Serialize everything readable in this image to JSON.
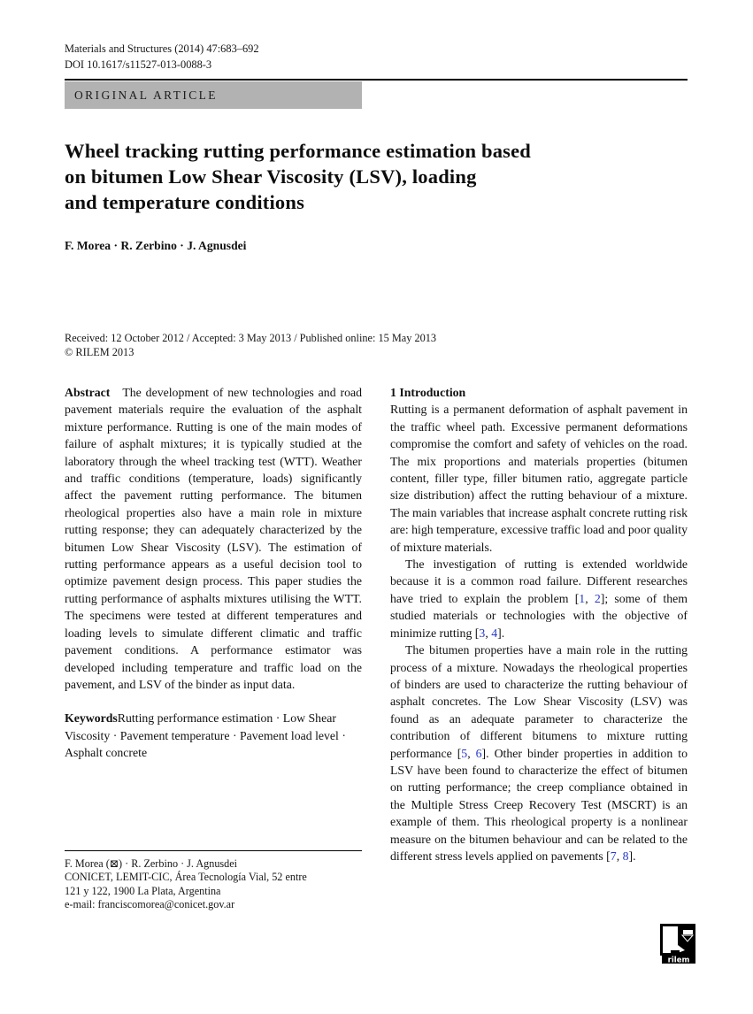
{
  "header": {
    "journal_line": "Materials and Structures (2014) 47:683–692",
    "doi_line": "DOI 10.1617/s11527-013-0088-3",
    "article_type": "ORIGINAL ARTICLE"
  },
  "title": {
    "lines": [
      "Wheel tracking rutting performance estimation based",
      "on bitumen Low Shear Viscosity (LSV), loading",
      "and temperature conditions"
    ]
  },
  "authors": "F. Morea · R. Zerbino · J. Agnusdei",
  "dates": {
    "received_line": "Received: 12 October 2012 / Accepted: 3 May 2013 / Published online: 15 May 2013",
    "copyright_line": "© RILEM 2013"
  },
  "abstract": {
    "label": "Abstract",
    "text": "The development of new technologies and road pavement materials require the evaluation of the asphalt mixture performance. Rutting is one of the main modes of failure of asphalt mixtures; it is typically studied at the laboratory through the wheel tracking test (WTT). Weather and traffic conditions (temperature, loads) significantly affect the pavement rutting performance. The bitumen rheological properties also have a main role in mixture rutting response; they can adequately characterized by the bitumen Low Shear Viscosity (LSV). The estimation of rutting performance appears as a useful decision tool to optimize pavement design process. This paper studies the rutting performance of asphalts mixtures utilising the WTT. The specimens were tested at different temperatures and loading levels to simulate different climatic and traffic pavement conditions. A performance estimator was developed including temperature and traffic load on the pavement, and LSV of the binder as input data."
  },
  "keywords": {
    "label": "Keywords",
    "text": "Rutting performance estimation · Low Shear Viscosity · Pavement temperature · Pavement load level · Asphalt concrete"
  },
  "introduction": {
    "heading": "1 Introduction",
    "paragraphs": [
      {
        "segments": [
          {
            "t": "Rutting is a permanent deformation of asphalt pavement in the traffic wheel path. Excessive permanent deformations compromise the comfort and safety of vehicles on the road. The mix proportions and materials properties (bitumen content, filler type, filler bitumen ratio, aggregate particle size distribution) affect the rutting behaviour of a mixture. The main variables that increase asphalt concrete rutting risk are: high temperature, excessive traffic load and poor quality of mixture materials."
          }
        ]
      },
      {
        "segments": [
          {
            "t": "The investigation of rutting is extended worldwide because it is a common road failure. Different researches have tried to explain the problem ["
          },
          {
            "l": "1"
          },
          {
            "t": ", "
          },
          {
            "l": "2"
          },
          {
            "t": "]; some of them studied materials or technologies with the objective of minimize rutting ["
          },
          {
            "l": "3"
          },
          {
            "t": ", "
          },
          {
            "l": "4"
          },
          {
            "t": "]."
          }
        ]
      },
      {
        "segments": [
          {
            "t": "The bitumen properties have a main role in the rutting process of a mixture. Nowadays the rheological properties of binders are used to characterize the rutting behaviour of asphalt concretes. The Low Shear Viscosity (LSV) was found as an adequate parameter to characterize the contribution of different bitumens to mixture rutting performance ["
          },
          {
            "l": "5"
          },
          {
            "t": ", "
          },
          {
            "l": "6"
          },
          {
            "t": "]. Other binder properties in addition to LSV have been found to characterize the effect of bitumen on rutting performance; the creep compliance obtained in the Multiple Stress Creep Recovery Test (MSCRT) is an example of them. This rheological property is a nonlinear measure on the bitumen behaviour and can be related to the different stress levels applied on pavements ["
          },
          {
            "l": "7"
          },
          {
            "t": ", "
          },
          {
            "l": "8"
          },
          {
            "t": "]."
          }
        ]
      }
    ]
  },
  "footnote": {
    "authors_line": "F. Morea (⊠) · R. Zerbino · J. Agnusdei",
    "affiliation_line1": "CONICET, LEMIT-CIC, Área Tecnología Vial, 52 entre",
    "affiliation_line2": "121 y 122, 1900 La Plata, Argentina",
    "email_line": "e-mail: franciscomorea@conicet.gov.ar"
  },
  "logo": {
    "wordmark": "rilem"
  },
  "colors": {
    "citation_blue": "#2438c8",
    "banner_gray": "#b2b2b2"
  }
}
